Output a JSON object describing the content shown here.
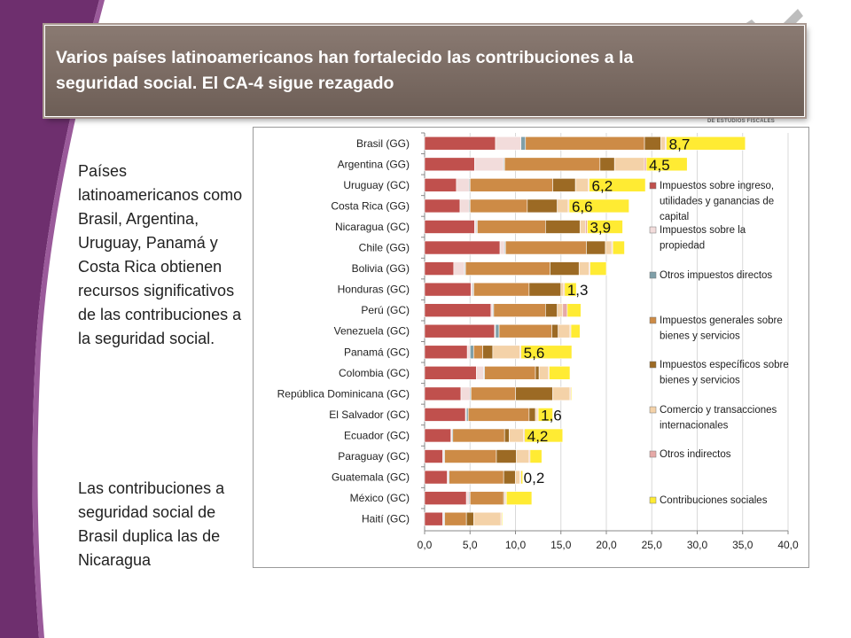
{
  "title": "Varios países latinoamericanos han fortalecido las contribuciones a la\nseguridad social. El CA-4 sigue rezagado",
  "logo_fragment": "DE ESTUDIOS FISCALES",
  "side_text_1": "Países latinoamericanos como Brasil, Argentina, Uruguay, Panamá y Costa Rica obtienen recursos significativos de las contribuciones a la seguridad social.",
  "side_text_2": "Las contribuciones a seguridad social de Brasil duplica las de Nicaragua",
  "colors": {
    "title_bg": "#7a6b63",
    "background_curve": "#6e2f6e",
    "highlight": "#f6d7d3"
  },
  "chart_data": {
    "type": "bar",
    "orientation": "horizontal",
    "stacked": true,
    "categories": [
      "Brasil (GG)",
      "Argentina (GG)",
      "Uruguay (GC)",
      "Costa Rica (GG)",
      "Nicaragua (GC)",
      "Chile (GG)",
      "Bolivia (GG)",
      "Honduras (GC)",
      "Perú (GC)",
      "Venezuela (GC)",
      "Panamá (GC)",
      "Colombia (GC)",
      "República Dominicana (GC)",
      "El Salvador (GC)",
      "Ecuador (GC)",
      "Paraguay (GC)",
      "Guatemala (GC)",
      "México (GC)",
      "Haití (GC)"
    ],
    "highlighted_category": "Nicaragua (GC)",
    "series": [
      {
        "name": "Impuestos sobre ingreso, utilidades y ganancias de capital",
        "color": "#c0504d",
        "values": [
          7.8,
          5.5,
          3.5,
          3.9,
          5.5,
          8.3,
          3.2,
          5.1,
          7.3,
          7.7,
          4.7,
          5.7,
          4.0,
          4.5,
          2.9,
          2.0,
          2.5,
          4.6,
          2.0
        ]
      },
      {
        "name": "Impuestos sobre la propiedad",
        "color": "#f2dcdb",
        "values": [
          2.8,
          3.2,
          1.4,
          1.0,
          0.2,
          0.5,
          1.2,
          0.2,
          0.2,
          0.1,
          0.3,
          0.8,
          1.0,
          0.1,
          0.1,
          0.1,
          0.1,
          0.3,
          0.1
        ]
      },
      {
        "name": "Otros impuestos directos",
        "color": "#7f9fa8",
        "values": [
          0.5,
          0.1,
          0.1,
          0.1,
          0.1,
          0.1,
          0.1,
          0.1,
          0.1,
          0.4,
          0.4,
          0.1,
          0.1,
          0.2,
          0.1,
          0.1,
          0.1,
          0.1,
          0.1
        ]
      },
      {
        "name": "Impuestos generales sobre bienes y servicios",
        "color": "#cd8b46",
        "values": [
          13.1,
          10.5,
          9.1,
          6.3,
          7.5,
          8.9,
          9.3,
          6.1,
          5.7,
          5.8,
          1.0,
          5.6,
          4.9,
          6.7,
          5.7,
          5.7,
          6.0,
          3.7,
          2.4
        ]
      },
      {
        "name": "Impuestos específicos sobre bienes y servicios",
        "color": "#9c6a24",
        "values": [
          1.8,
          1.6,
          2.5,
          3.3,
          3.8,
          2.1,
          3.2,
          3.5,
          1.3,
          0.7,
          1.1,
          0.4,
          4.1,
          0.7,
          0.5,
          2.2,
          1.3,
          0.1,
          0.8
        ]
      },
      {
        "name": "Comercio y transacciones internacionales",
        "color": "#f4d2a8",
        "values": [
          0.5,
          3.3,
          1.4,
          1.2,
          0.6,
          0.7,
          1.1,
          0.3,
          0.6,
          1.3,
          3.0,
          1.0,
          1.9,
          0.2,
          1.6,
          1.4,
          0.5,
          0.1,
          3.0
        ]
      },
      {
        "name": "Otros indirectos",
        "color": "#e6a9a7",
        "values": [
          0.1,
          0.2,
          0.1,
          0.1,
          0.2,
          0.1,
          0.1,
          0.1,
          0.5,
          0.1,
          0.1,
          0.1,
          0.1,
          0.1,
          0.1,
          0.1,
          0.1,
          0.1,
          0.1
        ]
      },
      {
        "name": "Contribuciones sociales",
        "color": "#ffeb33",
        "values": [
          8.7,
          4.5,
          6.2,
          6.6,
          3.9,
          1.3,
          1.8,
          1.3,
          1.5,
          1.0,
          5.6,
          2.3,
          0.1,
          1.6,
          4.2,
          1.3,
          0.2,
          2.8,
          0.1
        ]
      }
    ],
    "data_labels": [
      {
        "category": "Brasil (GG)",
        "text": "8,7"
      },
      {
        "category": "Argentina (GG)",
        "text": "4,5"
      },
      {
        "category": "Uruguay (GC)",
        "text": "6,2"
      },
      {
        "category": "Costa Rica (GG)",
        "text": "6,6"
      },
      {
        "category": "Nicaragua (GC)",
        "text": "3,9"
      },
      {
        "category": "Honduras (GC)",
        "text": "1,3"
      },
      {
        "category": "Panamá (GC)",
        "text": "5,6"
      },
      {
        "category": "El Salvador (GC)",
        "text": "1,6"
      },
      {
        "category": "Ecuador (GC)",
        "text": "4,2"
      },
      {
        "category": "Guatemala (GC)",
        "text": "0,2"
      }
    ],
    "xlim": [
      0,
      40
    ],
    "xticks": [
      "0,0",
      "5,0",
      "10,0",
      "15,0",
      "20,0",
      "25,0",
      "30,0",
      "35,0",
      "40,0"
    ],
    "gridlines": true,
    "legend_position": "right"
  }
}
